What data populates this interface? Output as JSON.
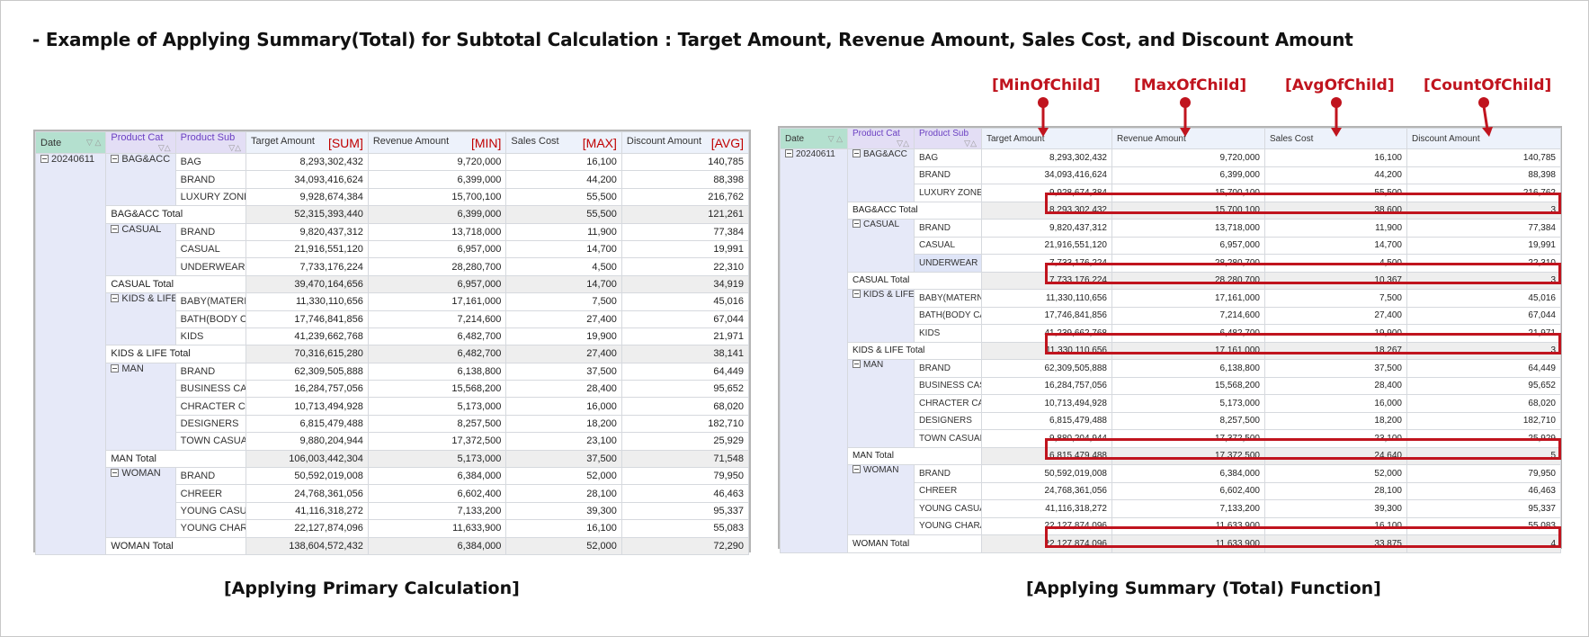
{
  "title": "- Example of Applying Summary(Total) for Subtotal Calculation : Target Amount, Revenue Amount, Sales Cost, and Discount Amount",
  "headers": {
    "date": "Date",
    "product_cat": "Product Cat",
    "product_sub": "Product Sub",
    "target": "Target Amount",
    "revenue": "Revenue Amount",
    "sales_cost": "Sales Cost",
    "discount": "Discount Amount"
  },
  "left_tags": {
    "target": "[SUM]",
    "revenue": "[MIN]",
    "sales_cost": "[MAX]",
    "discount": "[AVG]"
  },
  "right_labels": {
    "target": "[MinOfChild]",
    "revenue": "[MaxOfChild]",
    "sales_cost": "[AvgOfChild]",
    "discount": "[CountOfChild]"
  },
  "captions": {
    "left": "[Applying Primary Calculation]",
    "right": "[Applying Summary (Total) Function]"
  },
  "date_value": "20240611",
  "groups": [
    {
      "cat": "BAG&ACC",
      "rows": [
        {
          "sub": "BAG",
          "target": "8,293,302,432",
          "revenue": "9,720,000",
          "cost": "16,100",
          "discount": "140,785"
        },
        {
          "sub": "BRAND",
          "target": "34,093,416,624",
          "revenue": "6,399,000",
          "cost": "44,200",
          "discount": "88,398"
        },
        {
          "sub": "LUXURY ZONE",
          "target": "9,928,674,384",
          "revenue": "15,700,100",
          "cost": "55,500",
          "discount": "216,762"
        }
      ],
      "left_total": {
        "label": "BAG&ACC Total",
        "target": "52,315,393,440",
        "revenue": "6,399,000",
        "cost": "55,500",
        "discount": "121,261"
      },
      "right_total": {
        "label": "BAG&ACC Total",
        "target": "8,293,302,432",
        "revenue": "15,700,100",
        "cost": "38,600",
        "discount": "3"
      }
    },
    {
      "cat": "CASUAL",
      "rows": [
        {
          "sub": "BRAND",
          "target": "9,820,437,312",
          "revenue": "13,718,000",
          "cost": "11,900",
          "discount": "77,384"
        },
        {
          "sub": "CASUAL",
          "target": "21,916,551,120",
          "revenue": "6,957,000",
          "cost": "14,700",
          "discount": "19,991"
        },
        {
          "sub": "UNDERWEAR",
          "target": "7,733,176,224",
          "revenue": "28,280,700",
          "cost": "4,500",
          "discount": "22,310"
        }
      ],
      "left_total": {
        "label": "CASUAL Total",
        "target": "39,470,164,656",
        "revenue": "6,957,000",
        "cost": "14,700",
        "discount": "34,919"
      },
      "right_total": {
        "label": "CASUAL Total",
        "target": "7,733,176,224",
        "revenue": "28,280,700",
        "cost": "10,367",
        "discount": "3"
      }
    },
    {
      "cat": "KIDS & LIFE",
      "rows": [
        {
          "sub": "BABY(MATERNITY",
          "target": "11,330,110,656",
          "revenue": "17,161,000",
          "cost": "7,500",
          "discount": "45,016"
        },
        {
          "sub": "BATH(BODY CAR",
          "target": "17,746,841,856",
          "revenue": "7,214,600",
          "cost": "27,400",
          "discount": "67,044"
        },
        {
          "sub": "KIDS",
          "target": "41,239,662,768",
          "revenue": "6,482,700",
          "cost": "19,900",
          "discount": "21,971"
        }
      ],
      "left_total": {
        "label": "KIDS & LIFE Total",
        "target": "70,316,615,280",
        "revenue": "6,482,700",
        "cost": "27,400",
        "discount": "38,141"
      },
      "right_total": {
        "label": "KIDS & LIFE Total",
        "target": "11,330,110,656",
        "revenue": "17,161,000",
        "cost": "18,267",
        "discount": "3"
      }
    },
    {
      "cat": "MAN",
      "rows": [
        {
          "sub": "BRAND",
          "target": "62,309,505,888",
          "revenue": "6,138,800",
          "cost": "37,500",
          "discount": "64,449"
        },
        {
          "sub": "BUSINESS CASU",
          "target": "16,284,757,056",
          "revenue": "15,568,200",
          "cost": "28,400",
          "discount": "95,652"
        },
        {
          "sub": "CHRACTER CASU",
          "target": "10,713,494,928",
          "revenue": "5,173,000",
          "cost": "16,000",
          "discount": "68,020"
        },
        {
          "sub": "DESIGNERS",
          "target": "6,815,479,488",
          "revenue": "8,257,500",
          "cost": "18,200",
          "discount": "182,710"
        },
        {
          "sub": "TOWN CASUAL",
          "target": "9,880,204,944",
          "revenue": "17,372,500",
          "cost": "23,100",
          "discount": "25,929"
        }
      ],
      "left_total": {
        "label": "MAN Total",
        "target": "106,003,442,304",
        "revenue": "5,173,000",
        "cost": "37,500",
        "discount": "71,548"
      },
      "right_total": {
        "label": "MAN Total",
        "target": "6,815,479,488",
        "revenue": "17,372,500",
        "cost": "24,640",
        "discount": "5"
      }
    },
    {
      "cat": "WOMAN",
      "rows": [
        {
          "sub": "BRAND",
          "target": "50,592,019,008",
          "revenue": "6,384,000",
          "cost": "52,000",
          "discount": "79,950"
        },
        {
          "sub": "CHREER",
          "target": "24,768,361,056",
          "revenue": "6,602,400",
          "cost": "28,100",
          "discount": "46,463"
        },
        {
          "sub": "YOUNG CASUAL",
          "target": "41,116,318,272",
          "revenue": "7,133,200",
          "cost": "39,300",
          "discount": "95,337"
        },
        {
          "sub": "YOUNG CHARAC",
          "target": "22,127,874,096",
          "revenue": "11,633,900",
          "cost": "16,100",
          "discount": "55,083"
        }
      ],
      "left_total": {
        "label": "WOMAN Total",
        "target": "138,604,572,432",
        "revenue": "6,384,000",
        "cost": "52,000",
        "discount": "72,290"
      },
      "right_total": {
        "label": "WOMAN Total",
        "target": "22,127,874,096",
        "revenue": "11,633,900",
        "cost": "33,875",
        "discount": "4"
      }
    }
  ],
  "colors": {
    "accent_red": "#c0141e",
    "date_header": "#b4e0cf",
    "dim_header": "#e3def5",
    "dim_cell": "#e6e9f8",
    "total_row": "#eeeeee"
  }
}
